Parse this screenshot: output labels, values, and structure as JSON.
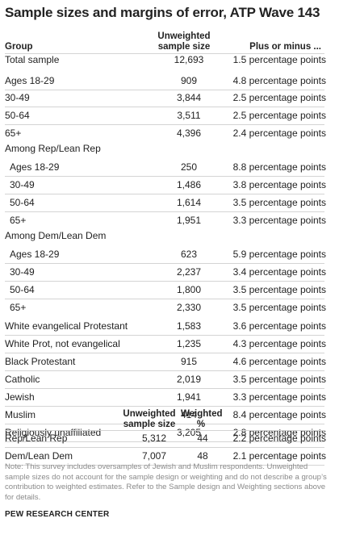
{
  "title": "Sample sizes and margins of error, ATP Wave 143",
  "header": {
    "group": "Group",
    "unweighted": [
      "Unweighted",
      "sample size"
    ],
    "moe": "Plus or minus ..."
  },
  "rows": [
    {
      "label": "Total sample",
      "n": "12,693",
      "moe": "1.5 percentage points",
      "indent": false
    },
    {
      "label": "Ages 18-29",
      "n": "909",
      "moe": "4.8 percentage points",
      "indent": false
    },
    {
      "label": "30-49",
      "n": "3,844",
      "moe": "2.5 percentage points",
      "indent": false
    },
    {
      "label": "50-64",
      "n": "3,511",
      "moe": "2.5 percentage points",
      "indent": false
    },
    {
      "label": "65+",
      "n": "4,396",
      "moe": "2.4 percentage points",
      "indent": false
    },
    {
      "label": "Among Rep/Lean Rep",
      "n": "",
      "moe": "",
      "indent": false
    },
    {
      "label": "Ages 18-29",
      "n": "250",
      "moe": "8.8 percentage points",
      "indent": true
    },
    {
      "label": "30-49",
      "n": "1,486",
      "moe": "3.8 percentage points",
      "indent": true
    },
    {
      "label": "50-64",
      "n": "1,614",
      "moe": "3.5 percentage points",
      "indent": true
    },
    {
      "label": "65+",
      "n": "1,951",
      "moe": "3.3 percentage points",
      "indent": true
    },
    {
      "label": "Among Dem/Lean Dem",
      "n": "",
      "moe": "",
      "indent": false
    },
    {
      "label": "Ages 18-29",
      "n": "623",
      "moe": "5.9 percentage points",
      "indent": true
    },
    {
      "label": "30-49",
      "n": "2,237",
      "moe": "3.4 percentage points",
      "indent": true
    },
    {
      "label": "50-64",
      "n": "1,800",
      "moe": "3.5 percentage points",
      "indent": true
    },
    {
      "label": "65+",
      "n": "2,330",
      "moe": "3.5 percentage points",
      "indent": true
    },
    {
      "label": "White evangelical Protestant",
      "n": "1,583",
      "moe": "3.6 percentage points",
      "indent": false
    },
    {
      "label": "White Prot, not evangelical",
      "n": "1,235",
      "moe": "4.3 percentage points",
      "indent": false
    },
    {
      "label": "Black Protestant",
      "n": "915",
      "moe": "4.6 percentage points",
      "indent": false
    },
    {
      "label": "Catholic",
      "n": "2,019",
      "moe": "3.5 percentage points",
      "indent": false
    },
    {
      "label": "Jewish",
      "n": "1,941",
      "moe": "3.3 percentage points",
      "indent": false
    },
    {
      "label": "Muslim",
      "n": "414",
      "moe": "8.4 percentage points",
      "indent": false
    },
    {
      "label": "Religiously unaffiliated",
      "n": "3,205",
      "moe": "2.8 percentage points",
      "indent": false
    }
  ],
  "header2": {
    "unweighted": [
      "Unweighted",
      "sample size"
    ],
    "weighted": [
      "Weighted",
      "%"
    ]
  },
  "rows2": [
    {
      "label": "Rep/Lean Rep",
      "n": "5,312",
      "w": "44",
      "moe": "2.2 percentage points"
    },
    {
      "label": "Dem/Lean Dem",
      "n": "7,007",
      "w": "48",
      "moe": "2.1 percentage points"
    }
  ],
  "note": "Note: This survey includes oversamples of Jewish and Muslim respondents. Unweighted sample sizes do not account for the sample design or weighting and do not describe a group’s contribution to weighted estimates. Refer to the Sample design and Weighting sections above for details.",
  "source": "PEW RESEARCH CENTER"
}
